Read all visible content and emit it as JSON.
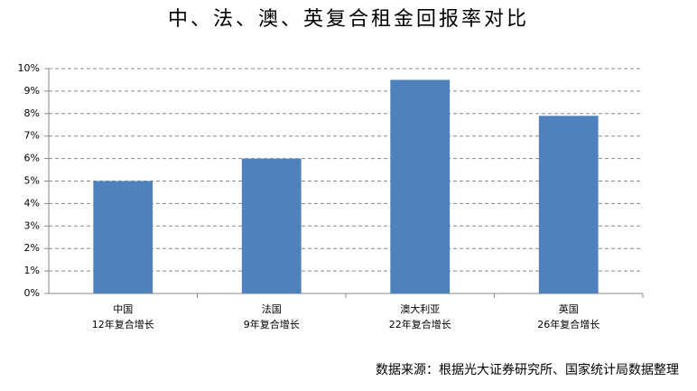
{
  "chart_data": {
    "type": "bar",
    "title": "中、法、澳、英复合租金回报率对比",
    "categories": [
      [
        "中国",
        "12年复合增长"
      ],
      [
        "法国",
        "9年复合增长"
      ],
      [
        "澳大利亚",
        "22年复合增长"
      ],
      [
        "英国",
        "26年复合增长"
      ]
    ],
    "values": [
      5,
      6,
      9.5,
      7.9
    ],
    "color": "#4f81bd",
    "ylim": [
      0,
      10
    ],
    "yticks": [
      {
        "value": 0,
        "label": "0%"
      },
      {
        "value": 1,
        "label": "1%"
      },
      {
        "value": 2,
        "label": "2%"
      },
      {
        "value": 3,
        "label": "3%"
      },
      {
        "value": 4,
        "label": "4%"
      },
      {
        "value": 5,
        "label": "5%"
      },
      {
        "value": 6,
        "label": "6%"
      },
      {
        "value": 7,
        "label": "7%"
      },
      {
        "value": 8,
        "label": "8%"
      },
      {
        "value": 9,
        "label": "9%"
      },
      {
        "value": 10,
        "label": "10%"
      }
    ],
    "grid": true,
    "source": "数据来源：根据光大证券研究所、国家统计局数据整理"
  }
}
